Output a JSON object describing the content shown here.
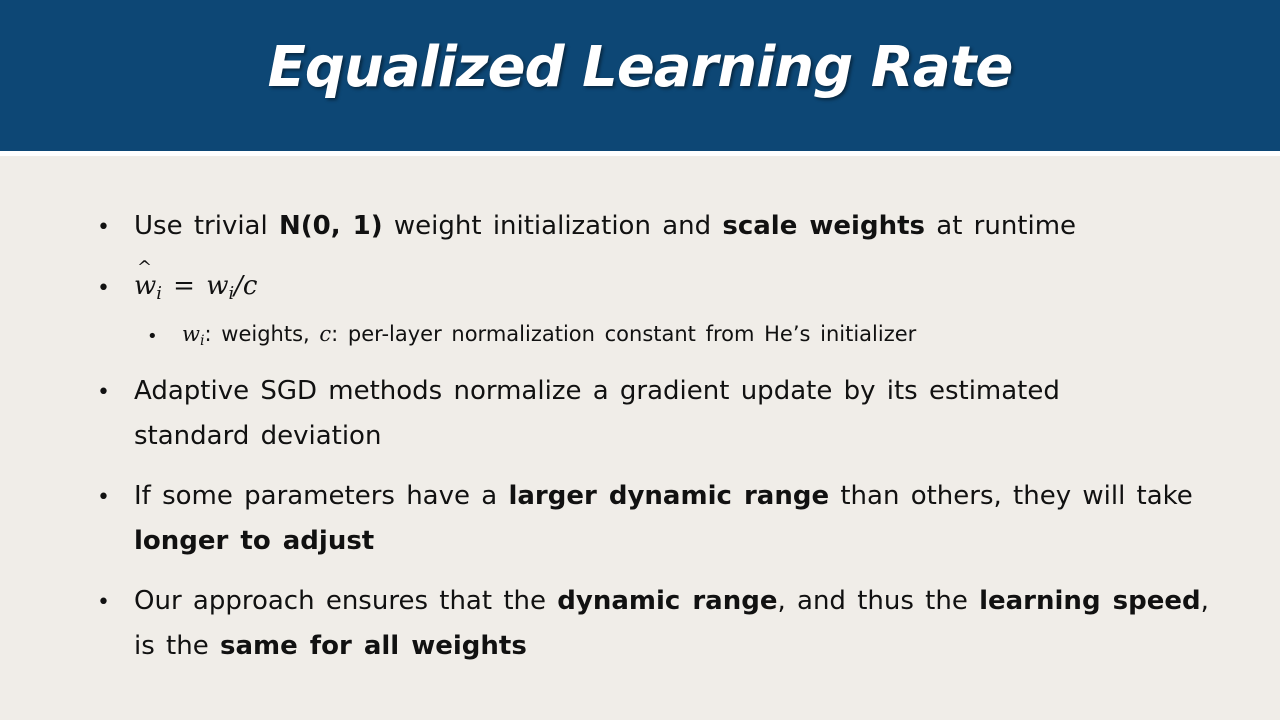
{
  "slide": {
    "title": "Equalized Learning Rate"
  },
  "bullets": [
    {
      "id": "b1",
      "lines": [
        [
          {
            "text": "Use trivial ",
            "bold": false
          },
          {
            "text": "N(0, 1)",
            "bold": true
          },
          {
            "text": " weight initialization and ",
            "bold": false
          },
          {
            "text": "scale weights",
            "bold": true
          },
          {
            "text": " at runtime",
            "bold": false
          }
        ]
      ]
    },
    {
      "id": "b2",
      "formula": {
        "lhs_base": "w",
        "lhs_sub": "i",
        "eq": " = ",
        "rhs_base": "w",
        "rhs_sub": "i",
        "rhs_tail": "/c"
      },
      "sub": {
        "w_base": "w",
        "w_sub": "i",
        "t1": ": weights, ",
        "c": "c",
        "t2": ": per-layer normalization constant from He’s initializer"
      }
    },
    {
      "id": "b3",
      "lines": [
        [
          {
            "text": "Adaptive SGD methods normalize a gradient update by its estimated",
            "bold": false
          }
        ],
        [
          {
            "text": "standard deviation",
            "bold": false
          }
        ]
      ]
    },
    {
      "id": "b4",
      "lines": [
        [
          {
            "text": "If some parameters have a ",
            "bold": false
          },
          {
            "text": "larger dynamic range",
            "bold": true
          },
          {
            "text": " than others, they will take",
            "bold": false
          }
        ],
        [
          {
            "text": "longer to adjust",
            "bold": true
          }
        ]
      ]
    },
    {
      "id": "b5",
      "lines": [
        [
          {
            "text": "Our approach ensures that the ",
            "bold": false
          },
          {
            "text": "dynamic range",
            "bold": true
          },
          {
            "text": ", and thus the ",
            "bold": false
          },
          {
            "text": "learning speed",
            "bold": true
          },
          {
            "text": ",",
            "bold": false
          }
        ],
        [
          {
            "text": "is the ",
            "bold": false
          },
          {
            "text": "same for all weights",
            "bold": true
          }
        ]
      ]
    }
  ],
  "bullet_glyph": "•"
}
